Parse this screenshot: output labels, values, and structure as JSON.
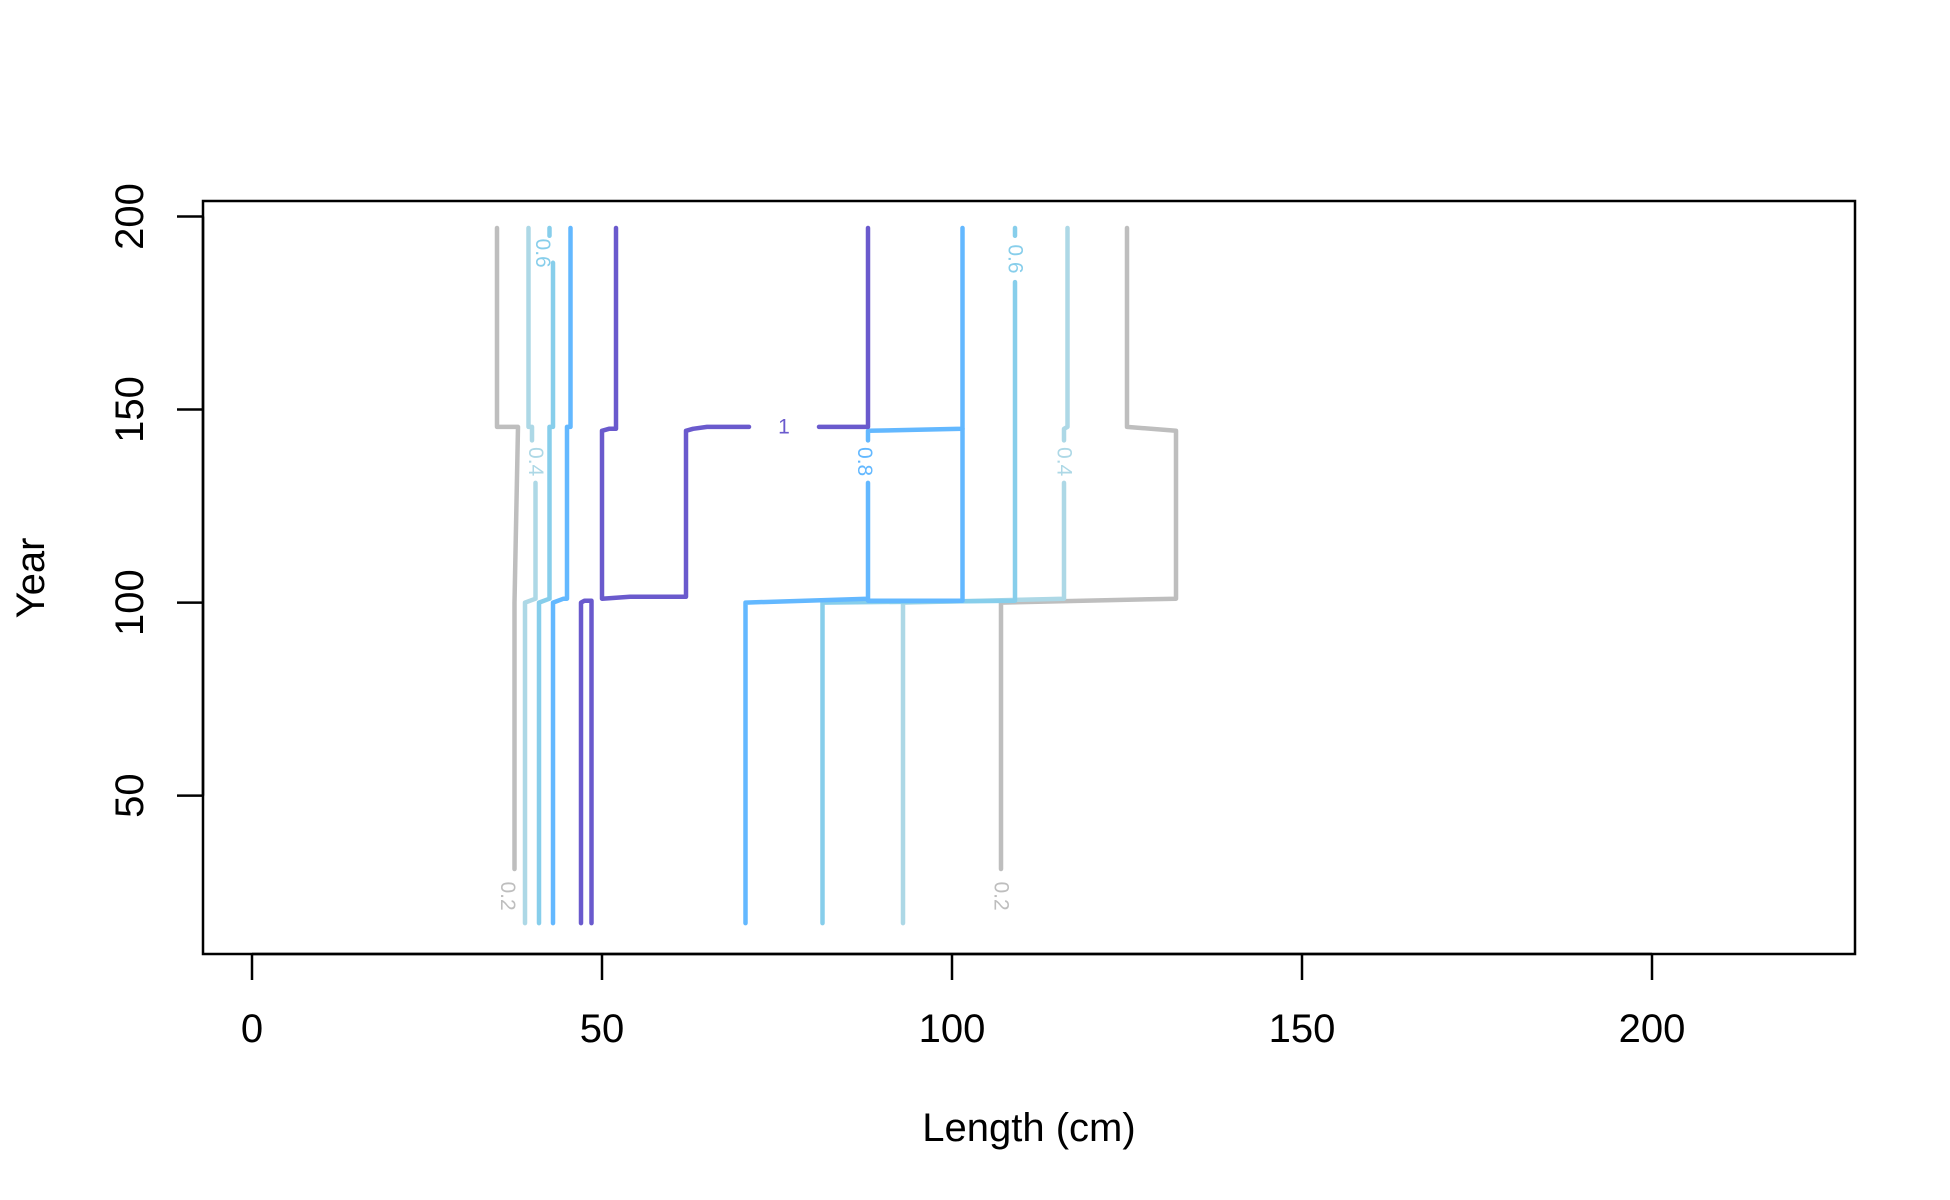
{
  "chart_data": {
    "type": "contour",
    "title": "",
    "xlabel": "Length (cm)",
    "ylabel": "Year",
    "xlim": [
      -7,
      229
    ],
    "ylim": [
      9,
      204
    ],
    "x_ticks": [
      0,
      50,
      100,
      150,
      200
    ],
    "y_ticks": [
      50,
      100,
      150,
      200
    ],
    "x_tick_labels": [
      "0",
      "50",
      "100",
      "150",
      "200"
    ],
    "y_tick_labels": [
      "50",
      "100",
      "150",
      "200"
    ],
    "grid": false,
    "legend": "none",
    "series": [
      {
        "level": "0.2",
        "color": "#bebebe",
        "lines": [
          [
            [
              37.5,
              31
            ],
            [
              37.5,
              100
            ],
            [
              38,
              145.5
            ],
            [
              35,
              145.5
            ],
            [
              35,
              197
            ]
          ],
          [
            [
              107,
              31
            ],
            [
              107,
              100
            ],
            [
              132,
              101
            ],
            [
              132,
              144.5
            ],
            [
              125,
              145.5
            ],
            [
              125,
              197
            ]
          ]
        ],
        "labels": [
          {
            "text": "0.2",
            "x": 36.5,
            "y": 24
          },
          {
            "text": "0.2",
            "x": 107,
            "y": 24
          }
        ]
      },
      {
        "level": "0.4",
        "color": "#add8e6",
        "lines": [
          [
            [
              93,
              17
            ],
            [
              93,
              100
            ],
            [
              116,
              101
            ],
            [
              116,
              131
            ]
          ],
          [
            [
              116,
              142
            ],
            [
              116,
              145
            ],
            [
              116.5,
              145.5
            ],
            [
              116.5,
              197
            ]
          ],
          [
            [
              39,
              17
            ],
            [
              39,
              100
            ],
            [
              40.5,
              101
            ],
            [
              40.5,
              131
            ]
          ],
          [
            [
              40,
              142
            ],
            [
              40,
              145.5
            ],
            [
              39.5,
              145.5
            ],
            [
              39.5,
              197
            ]
          ]
        ],
        "labels": [
          {
            "text": "0.4",
            "x": 40.5,
            "y": 136.5
          },
          {
            "text": "0.4",
            "x": 116,
            "y": 136.5
          }
        ]
      },
      {
        "level": "0.6",
        "color": "#87ceeb",
        "lines": [
          [
            [
              41,
              17
            ],
            [
              41,
              100
            ],
            [
              42.5,
              101
            ],
            [
              42.5,
              145.5
            ],
            [
              43,
              145.5
            ],
            [
              43,
              188
            ]
          ],
          [
            [
              81.5,
              17
            ],
            [
              81.5,
              100
            ],
            [
              109,
              100.5
            ],
            [
              109,
              145.5
            ],
            [
              109,
              183
            ]
          ],
          [
            [
              109,
              195
            ],
            [
              109,
              197
            ]
          ],
          [
            [
              42.5,
              195
            ],
            [
              42.5,
              197
            ]
          ]
        ],
        "labels": [
          {
            "text": "0.6",
            "x": 41.5,
            "y": 190.5
          },
          {
            "text": "0.6",
            "x": 109,
            "y": 189
          }
        ]
      },
      {
        "level": "0.8",
        "color": "#63b8ff",
        "lines": [
          [
            [
              43,
              17
            ],
            [
              43,
              100
            ],
            [
              44.5,
              101
            ],
            [
              45,
              101
            ],
            [
              45,
              145.5
            ],
            [
              45.5,
              145.5
            ],
            [
              45.5,
              197
            ]
          ],
          [
            [
              70.5,
              17
            ],
            [
              70.5,
              100
            ],
            [
              88,
              101
            ],
            [
              88,
              131
            ]
          ],
          [
            [
              88,
              142
            ],
            [
              88,
              144.5
            ],
            [
              101.5,
              145
            ],
            [
              101.5,
              197
            ]
          ],
          [
            [
              101.5,
              145
            ],
            [
              101.5,
              100.5
            ],
            [
              88,
              100.5
            ]
          ]
        ],
        "labels": [
          {
            "text": "0.8",
            "x": 87.5,
            "y": 136.5
          }
        ]
      },
      {
        "level": "1",
        "color": "#6a5acd",
        "lines": [
          [
            [
              47,
              17
            ],
            [
              47,
              100
            ],
            [
              47.5,
              100.5
            ],
            [
              48.5,
              100.5
            ],
            [
              48.5,
              17
            ]
          ],
          [
            [
              52,
              197
            ],
            [
              52,
              145
            ],
            [
              51,
              145
            ],
            [
              50,
              144.5
            ],
            [
              50,
              101
            ],
            [
              54,
              101.5
            ],
            [
              62,
              101.5
            ],
            [
              62,
              144.5
            ],
            [
              63,
              145
            ],
            [
              65,
              145.5
            ],
            [
              71,
              145.5
            ]
          ],
          [
            [
              81,
              145.5
            ],
            [
              88,
              145.5
            ],
            [
              88,
              197
            ]
          ]
        ],
        "labels": [
          {
            "text": "1",
            "x": 76,
            "y": 145.5
          }
        ]
      }
    ]
  }
}
